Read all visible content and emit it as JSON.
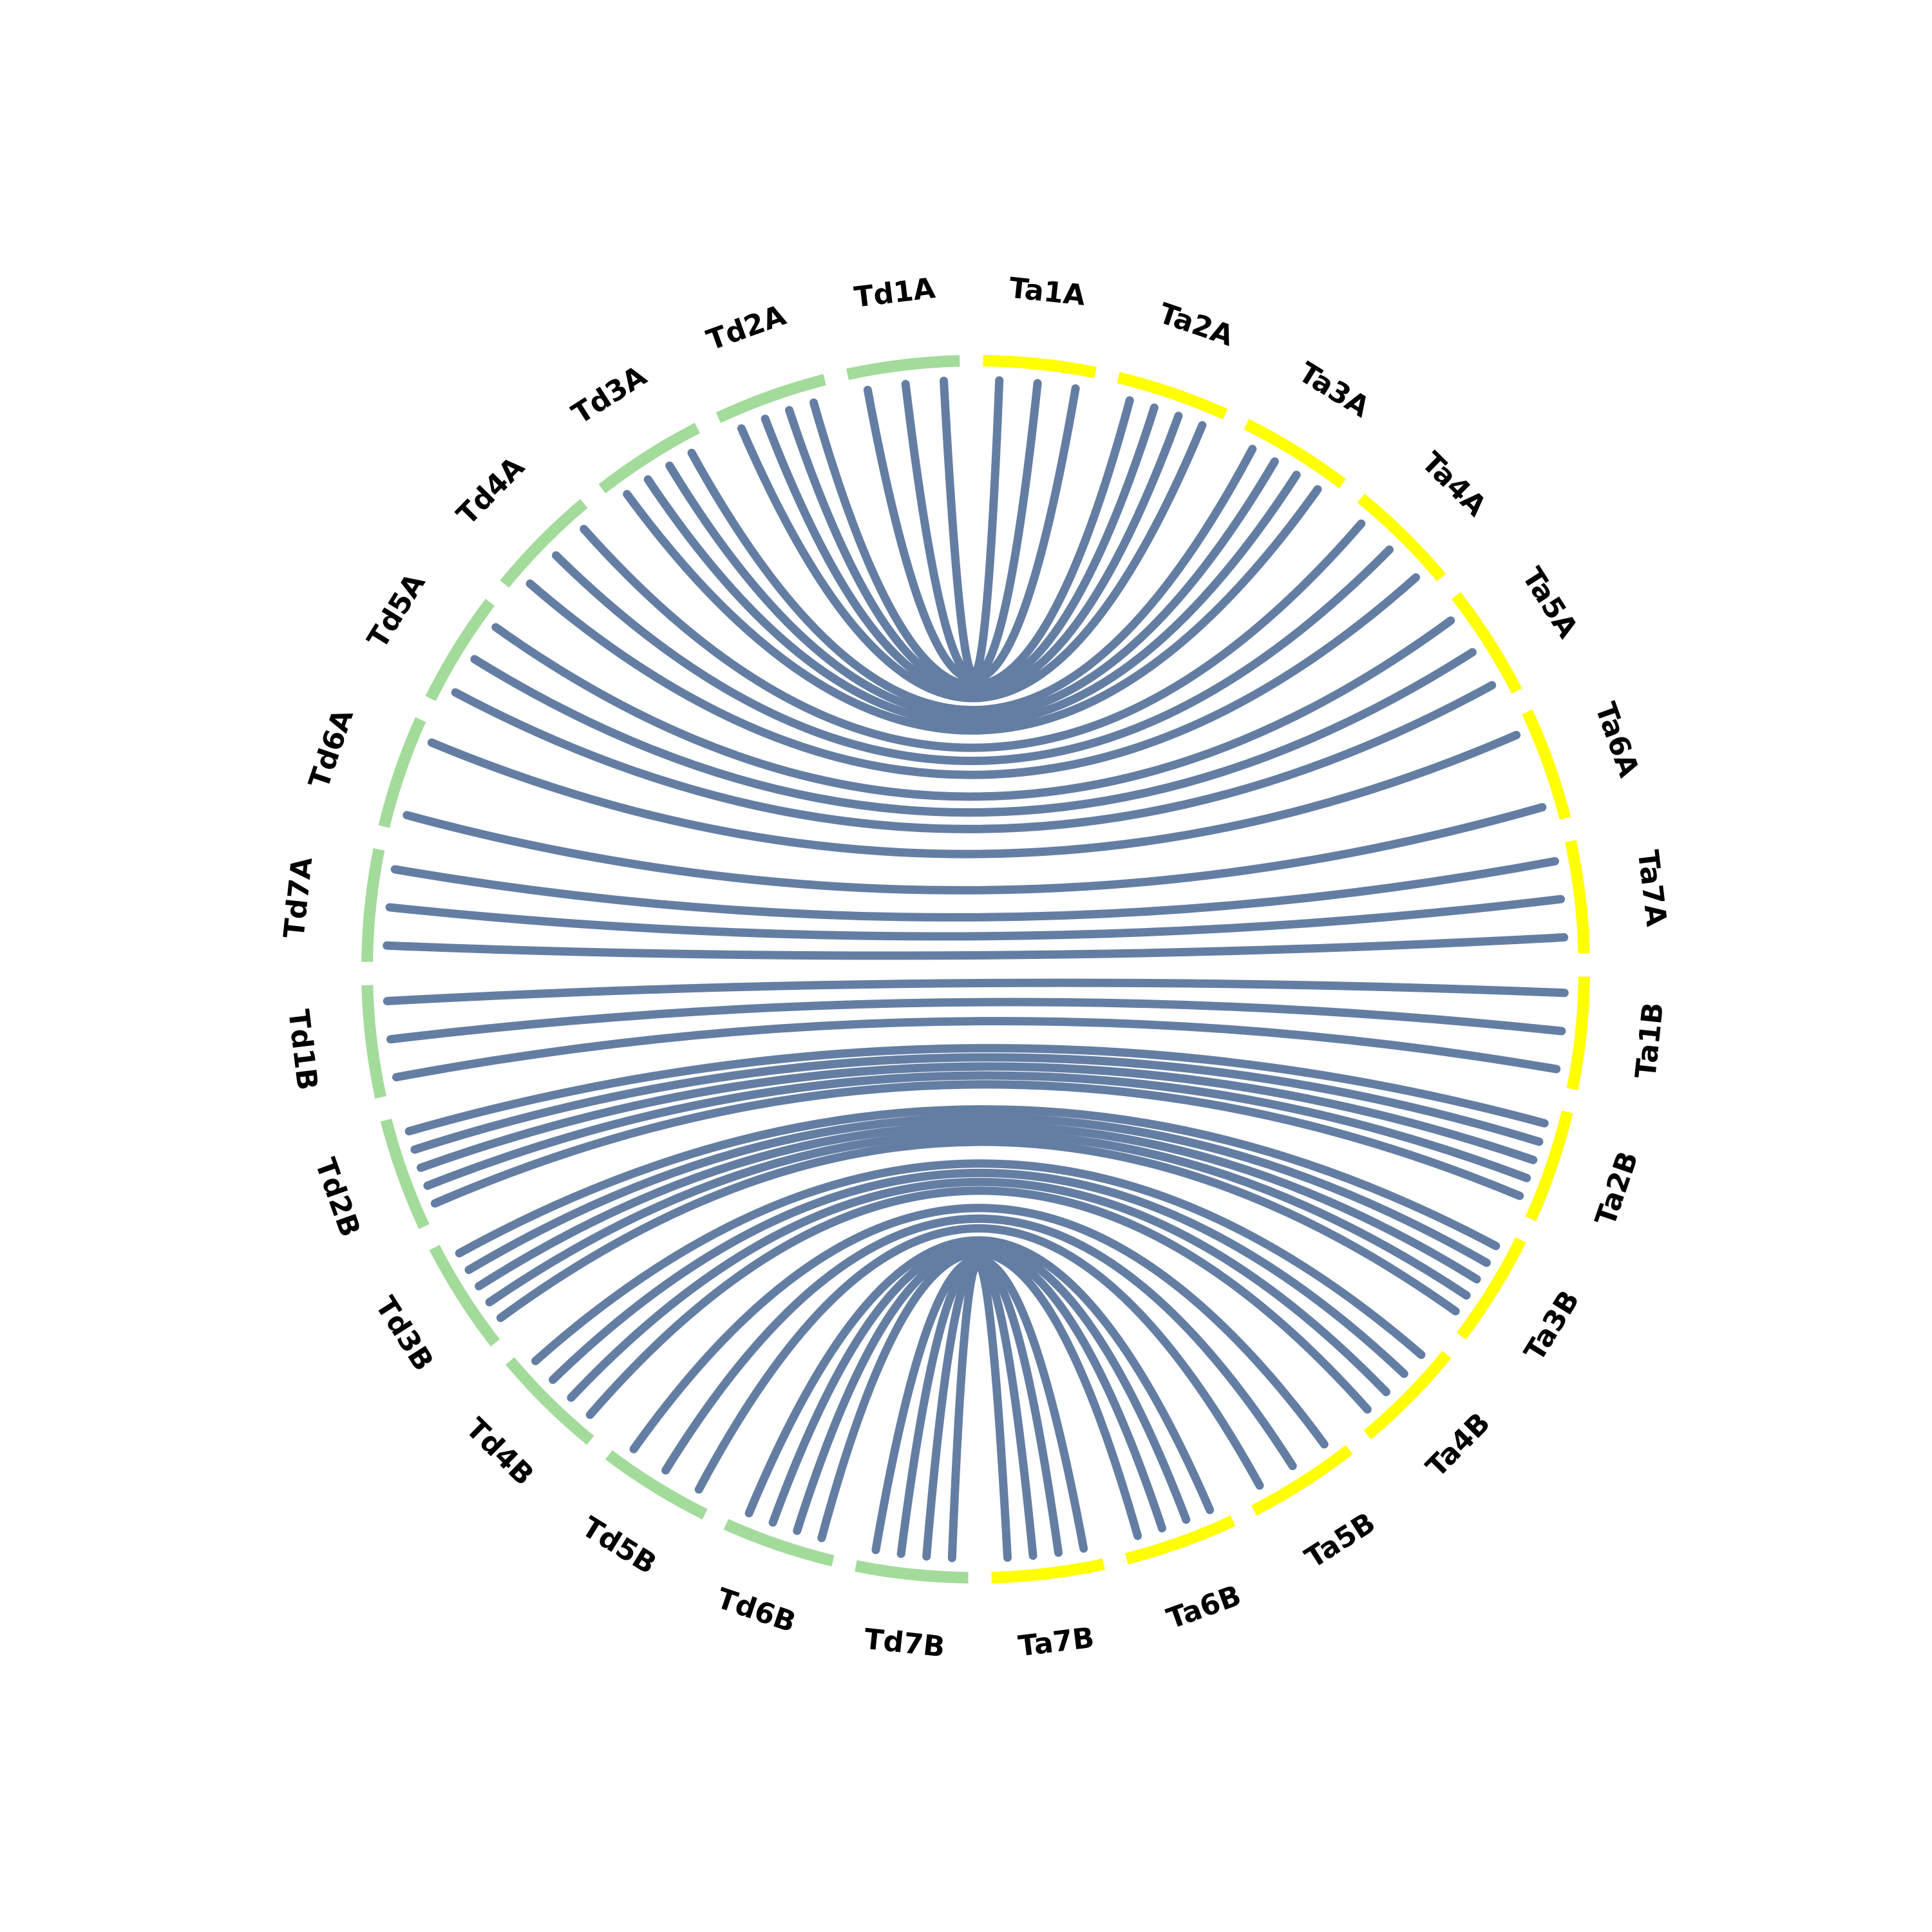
{
  "nodes": [
    {
      "label": "Ta1A",
      "color": "#ffff00"
    },
    {
      "label": "Ta2A",
      "color": "#ffff00"
    },
    {
      "label": "Ta3A",
      "color": "#ffff00"
    },
    {
      "label": "Ta4A",
      "color": "#ffff00"
    },
    {
      "label": "Ta5A",
      "color": "#ffff00"
    },
    {
      "label": "Ta6A",
      "color": "#ffff00"
    },
    {
      "label": "Ta7A",
      "color": "#ffff00"
    },
    {
      "label": "Ta1B",
      "color": "#ffff00"
    },
    {
      "label": "Ta2B",
      "color": "#ffff00"
    },
    {
      "label": "Ta3B",
      "color": "#ffff00"
    },
    {
      "label": "Ta4B",
      "color": "#ffff00"
    },
    {
      "label": "Ta5B",
      "color": "#ffff00"
    },
    {
      "label": "Ta6B",
      "color": "#ffff00"
    },
    {
      "label": "Ta7B",
      "color": "#ffff00"
    },
    {
      "label": "Td7B",
      "color": "#a3db9b"
    },
    {
      "label": "Td6B",
      "color": "#a3db9b"
    },
    {
      "label": "Td5B",
      "color": "#a3db9b"
    },
    {
      "label": "Td4B",
      "color": "#a3db9b"
    },
    {
      "label": "Td3B",
      "color": "#a3db9b"
    },
    {
      "label": "Td2B",
      "color": "#a3db9b"
    },
    {
      "label": "Td1B",
      "color": "#a3db9b"
    },
    {
      "label": "Td7A",
      "color": "#a3db9b"
    },
    {
      "label": "Td6A",
      "color": "#a3db9b"
    },
    {
      "label": "Td5A",
      "color": "#a3db9b"
    },
    {
      "label": "Td4A",
      "color": "#a3db9b"
    },
    {
      "label": "Td3A",
      "color": "#a3db9b"
    },
    {
      "label": "Td2A",
      "color": "#a3db9b"
    },
    {
      "label": "Td1A",
      "color": "#a3db9b"
    }
  ],
  "links": [
    {
      "source": 27,
      "target": 0,
      "count": 3
    },
    {
      "source": 26,
      "target": 1,
      "count": 4
    },
    {
      "source": 25,
      "target": 2,
      "count": 4
    },
    {
      "source": 24,
      "target": 3,
      "count": 3
    },
    {
      "source": 23,
      "target": 4,
      "count": 3
    },
    {
      "source": 22,
      "target": 5,
      "count": 2
    },
    {
      "source": 21,
      "target": 6,
      "count": 3
    },
    {
      "source": 20,
      "target": 7,
      "count": 3
    },
    {
      "source": 19,
      "target": 8,
      "count": 5
    },
    {
      "source": 18,
      "target": 9,
      "count": 5
    },
    {
      "source": 17,
      "target": 10,
      "count": 4
    },
    {
      "source": 16,
      "target": 11,
      "count": 3
    },
    {
      "source": 15,
      "target": 12,
      "count": 4
    },
    {
      "source": 14,
      "target": 13,
      "count": 4
    }
  ],
  "link_color": "#647ea3"
}
